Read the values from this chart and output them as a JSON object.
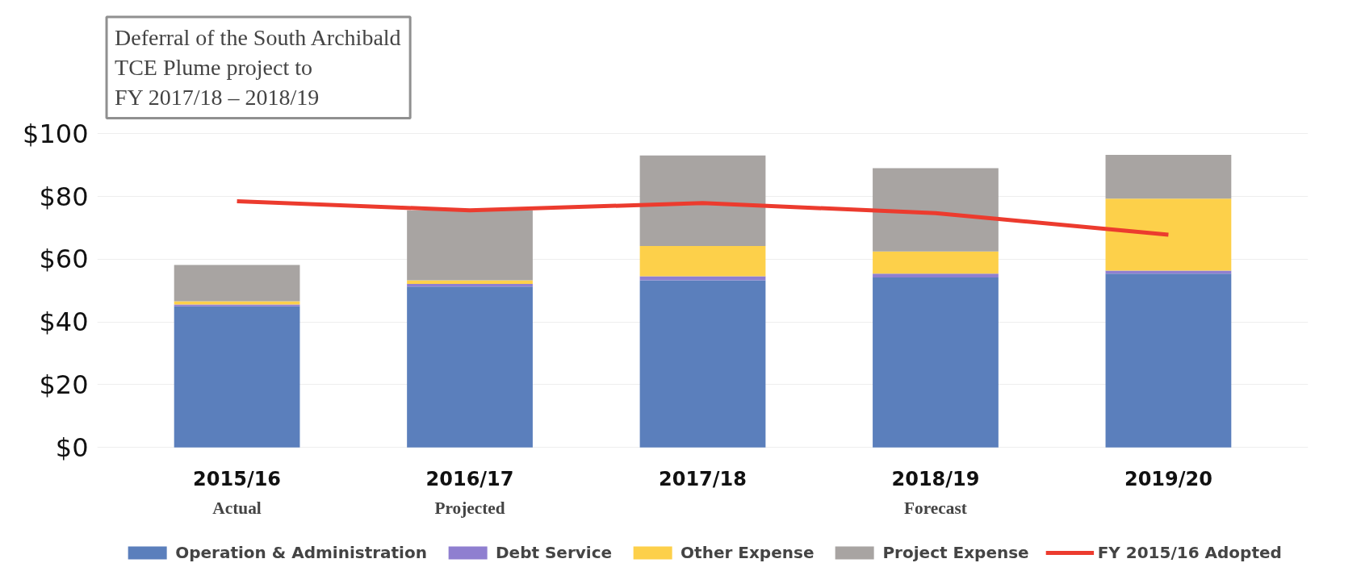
{
  "chart_data": {
    "type": "bar",
    "stacked": true,
    "categories": [
      "2015/16",
      "2016/17",
      "2017/18",
      "2018/19",
      "2019/20"
    ],
    "series": [
      {
        "name": "Operation & Administration",
        "color": "#5b7fbc",
        "values": [
          45.0,
          51.3,
          53.3,
          54.2,
          55.4
        ]
      },
      {
        "name": "Debt Service",
        "color": "#8f7fd0",
        "values": [
          0.6,
          0.8,
          1.3,
          1.2,
          1.0
        ]
      },
      {
        "name": "Other Expense",
        "color": "#fdd04a",
        "values": [
          1.0,
          1.2,
          9.6,
          7.1,
          22.9
        ]
      },
      {
        "name": "Project Expense",
        "color": "#a8a4a2",
        "values": [
          11.6,
          22.3,
          28.9,
          26.5,
          14.0
        ]
      },
      {
        "name": "FY 2015/16 Adopted",
        "type": "line",
        "color": "#ec3b2e",
        "values": [
          78.5,
          75.6,
          77.9,
          74.7,
          67.8
        ]
      }
    ],
    "ylim": [
      0,
      100
    ],
    "yticks": [
      {
        "value": 0,
        "label": "$0"
      },
      {
        "value": 20,
        "label": "$20"
      },
      {
        "value": 40,
        "label": "$40"
      },
      {
        "value": 60,
        "label": "$60"
      },
      {
        "value": 80,
        "label": "$80"
      },
      {
        "value": 100,
        "label": "$100"
      }
    ],
    "grid": "y",
    "legend": "bottom",
    "annotations": [
      "Deferral of the South Archibald\nTCE Plume project to\nFY 2017/18 – 2018/19",
      {
        "text": "Actual",
        "x": "2015/16",
        "y": 0
      },
      {
        "text": "Projected",
        "x": "2016/17",
        "y": 0
      },
      {
        "text": "Forecast",
        "x": "2018/19",
        "y": 0
      }
    ]
  }
}
